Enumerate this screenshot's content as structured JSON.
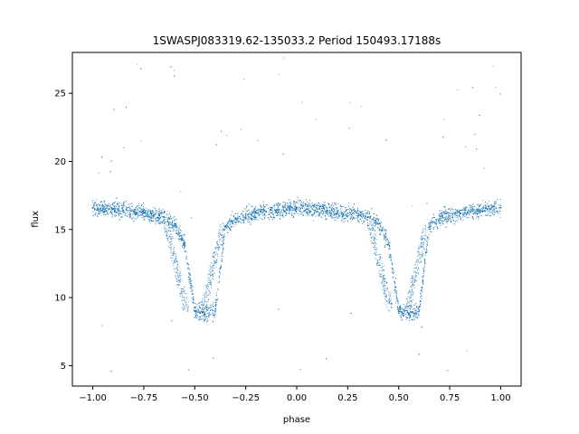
{
  "chart_data": {
    "type": "scatter",
    "title": "1SWASPJ083319.62-135033.2 Period 150493.17188s",
    "xlabel": "phase",
    "ylabel": "flux",
    "xlim": [
      -1.1,
      1.1
    ],
    "ylim": [
      3.5,
      28.0
    ],
    "x_ticks": [
      -1.0,
      -0.75,
      -0.5,
      -0.25,
      0.0,
      0.25,
      0.5,
      0.75,
      1.0
    ],
    "x_tick_labels": [
      "−1.00",
      "−0.75",
      "−0.50",
      "−0.25",
      "0.00",
      "0.25",
      "0.50",
      "0.75",
      "1.00"
    ],
    "y_ticks": [
      5,
      10,
      15,
      20,
      25
    ],
    "y_tick_labels": [
      "5",
      "10",
      "15",
      "20",
      "25"
    ],
    "grid": false,
    "point_color": "#1f77b4",
    "series": [
      {
        "x": [
          -1.0,
          -0.95,
          -0.9,
          -0.85,
          -0.8,
          -0.75,
          -0.7,
          -0.65,
          -0.6,
          -0.55,
          -0.5,
          -0.45,
          -0.4,
          -0.35,
          -0.3,
          -0.25,
          -0.2,
          -0.15,
          -0.1,
          -0.05,
          0.0,
          0.05,
          0.1,
          0.15,
          0.2,
          0.25,
          0.3,
          0.35,
          0.4,
          0.45,
          0.5,
          0.55,
          0.6,
          0.65,
          0.7,
          0.75,
          0.8,
          0.85,
          0.9,
          0.95,
          1.0
        ],
        "y": [
          16.6,
          16.5,
          16.5,
          16.4,
          16.3,
          16.2,
          16.0,
          15.9,
          15.4,
          14.0,
          9.0,
          8.8,
          9.0,
          15.2,
          15.8,
          16.0,
          16.2,
          16.3,
          16.4,
          16.5,
          16.6,
          16.5,
          16.5,
          16.4,
          16.3,
          16.2,
          16.0,
          15.9,
          15.4,
          14.0,
          9.0,
          8.8,
          9.0,
          15.2,
          15.8,
          16.0,
          16.2,
          16.3,
          16.4,
          16.5,
          16.6
        ]
      }
    ]
  }
}
